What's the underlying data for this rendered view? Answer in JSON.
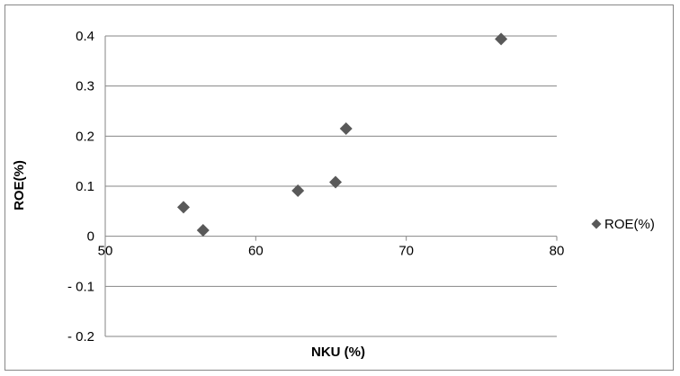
{
  "chart_data": {
    "type": "scatter",
    "title": "",
    "xlabel": "NKU (%)",
    "ylabel": "ROE(%)",
    "xlim": [
      50,
      80
    ],
    "ylim": [
      -0.2,
      0.4
    ],
    "xticks": [
      50,
      60,
      70,
      80
    ],
    "xtick_labels": [
      "50",
      "60",
      "70",
      "80"
    ],
    "yticks": [
      0.4,
      0.3,
      0.2,
      0.1,
      0,
      -0.1,
      -0.2
    ],
    "ytick_labels": [
      "0.4",
      "0.3",
      "0.2",
      "0.1",
      "0",
      "- 0.1",
      "- 0.2"
    ],
    "grid": "horizontal",
    "legend_position": "right",
    "marker": "diamond",
    "color": "#595959",
    "series": [
      {
        "name": "ROE(%)",
        "points": [
          {
            "x": 55.2,
            "y": 0.058
          },
          {
            "x": 56.5,
            "y": 0.012
          },
          {
            "x": 62.8,
            "y": 0.091
          },
          {
            "x": 65.3,
            "y": 0.108
          },
          {
            "x": 66.0,
            "y": 0.215
          },
          {
            "x": 76.3,
            "y": 0.394
          }
        ]
      }
    ]
  }
}
